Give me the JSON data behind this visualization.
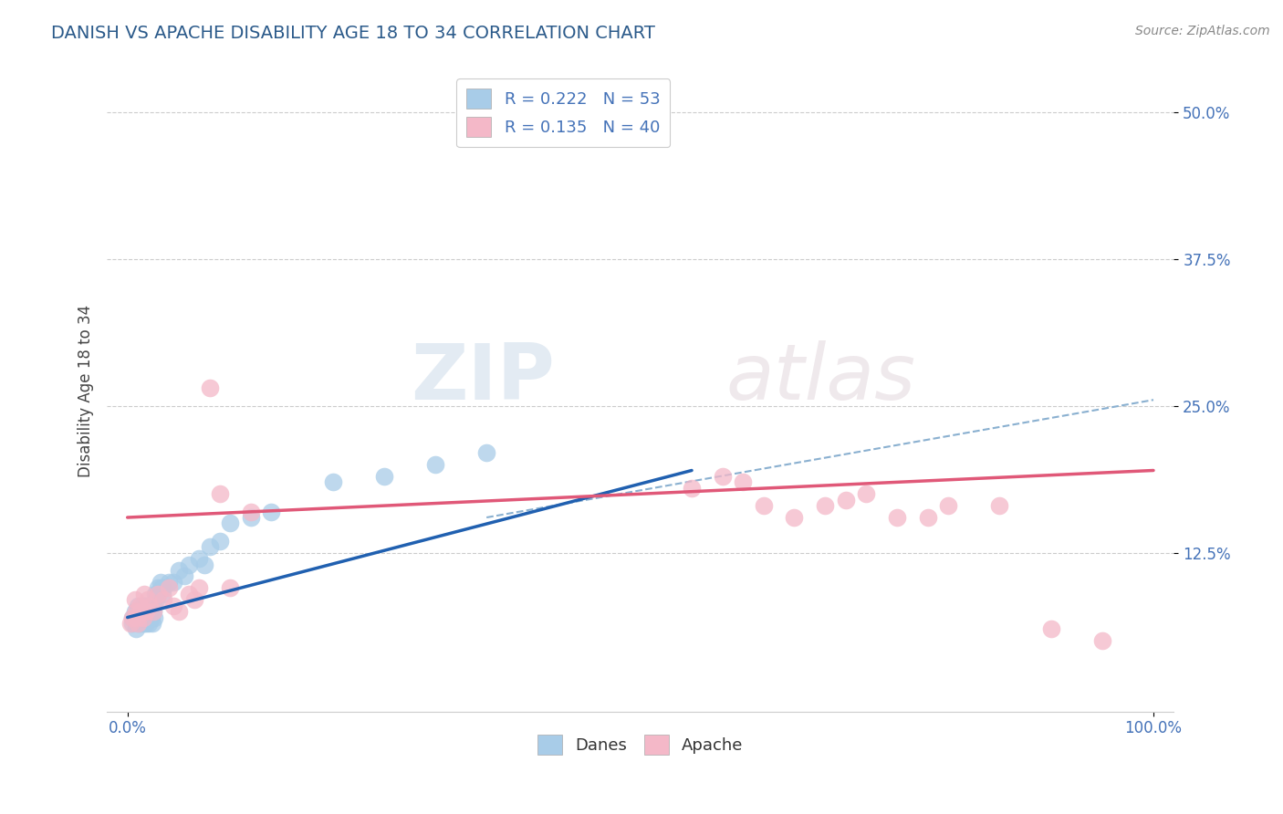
{
  "title": "DANISH VS APACHE DISABILITY AGE 18 TO 34 CORRELATION CHART",
  "title_color": "#2b5a8a",
  "title_fontsize": 14,
  "ylabel": "Disability Age 18 to 34",
  "source_text": "Source: ZipAtlas.com",
  "xlim": [
    -0.02,
    1.02
  ],
  "ylim": [
    -0.01,
    0.535
  ],
  "x_ticks": [
    0.0,
    1.0
  ],
  "x_tick_labels": [
    "0.0%",
    "100.0%"
  ],
  "y_ticks": [
    0.125,
    0.25,
    0.375,
    0.5
  ],
  "y_tick_labels": [
    "12.5%",
    "25.0%",
    "37.5%",
    "50.0%"
  ],
  "watermark_zip": "ZIP",
  "watermark_atlas": "atlas",
  "danes_color": "#a8cce8",
  "apache_color": "#f4b8c8",
  "danes_line_color": "#2060b0",
  "apache_line_color": "#e05878",
  "dashed_line_color": "#8ab0d0",
  "legend_R_danes": "0.222",
  "legend_N_danes": "53",
  "legend_R_apache": "0.135",
  "legend_N_apache": "40",
  "background_color": "#ffffff",
  "grid_color": "#cccccc",
  "danes_x": [
    0.005,
    0.005,
    0.007,
    0.008,
    0.009,
    0.01,
    0.01,
    0.012,
    0.012,
    0.013,
    0.015,
    0.015,
    0.015,
    0.016,
    0.016,
    0.017,
    0.018,
    0.018,
    0.019,
    0.02,
    0.02,
    0.021,
    0.022,
    0.022,
    0.023,
    0.024,
    0.025,
    0.025,
    0.026,
    0.027,
    0.028,
    0.03,
    0.03,
    0.032,
    0.033,
    0.034,
    0.035,
    0.04,
    0.045,
    0.05,
    0.055,
    0.06,
    0.07,
    0.075,
    0.08,
    0.09,
    0.1,
    0.12,
    0.14,
    0.2,
    0.25,
    0.3,
    0.35
  ],
  "danes_y": [
    0.065,
    0.07,
    0.075,
    0.06,
    0.07,
    0.065,
    0.08,
    0.07,
    0.075,
    0.065,
    0.07,
    0.08,
    0.075,
    0.065,
    0.07,
    0.075,
    0.08,
    0.065,
    0.07,
    0.075,
    0.07,
    0.065,
    0.08,
    0.075,
    0.07,
    0.065,
    0.08,
    0.075,
    0.07,
    0.09,
    0.085,
    0.09,
    0.095,
    0.1,
    0.095,
    0.09,
    0.095,
    0.1,
    0.1,
    0.11,
    0.105,
    0.115,
    0.12,
    0.115,
    0.13,
    0.135,
    0.15,
    0.155,
    0.16,
    0.185,
    0.19,
    0.2,
    0.21
  ],
  "apache_x": [
    0.003,
    0.005,
    0.007,
    0.008,
    0.009,
    0.01,
    0.012,
    0.013,
    0.015,
    0.016,
    0.018,
    0.02,
    0.022,
    0.025,
    0.03,
    0.035,
    0.04,
    0.045,
    0.05,
    0.06,
    0.065,
    0.07,
    0.08,
    0.09,
    0.1,
    0.12,
    0.55,
    0.58,
    0.6,
    0.62,
    0.65,
    0.68,
    0.7,
    0.72,
    0.75,
    0.78,
    0.8,
    0.85,
    0.9,
    0.95
  ],
  "apache_y": [
    0.065,
    0.07,
    0.085,
    0.075,
    0.07,
    0.065,
    0.08,
    0.075,
    0.07,
    0.09,
    0.075,
    0.085,
    0.08,
    0.075,
    0.09,
    0.085,
    0.095,
    0.08,
    0.075,
    0.09,
    0.085,
    0.095,
    0.265,
    0.175,
    0.095,
    0.16,
    0.18,
    0.19,
    0.185,
    0.165,
    0.155,
    0.165,
    0.17,
    0.175,
    0.155,
    0.155,
    0.165,
    0.165,
    0.06,
    0.05
  ],
  "danes_line_x_start": 0.0,
  "danes_line_x_end": 0.55,
  "danes_line_y_start": 0.07,
  "danes_line_y_end": 0.195,
  "dashed_line_x_start": 0.35,
  "dashed_line_x_end": 1.0,
  "dashed_line_y_start": 0.155,
  "dashed_line_y_end": 0.255,
  "apache_line_x_start": 0.0,
  "apache_line_x_end": 1.0,
  "apache_line_y_start": 0.155,
  "apache_line_y_end": 0.195
}
